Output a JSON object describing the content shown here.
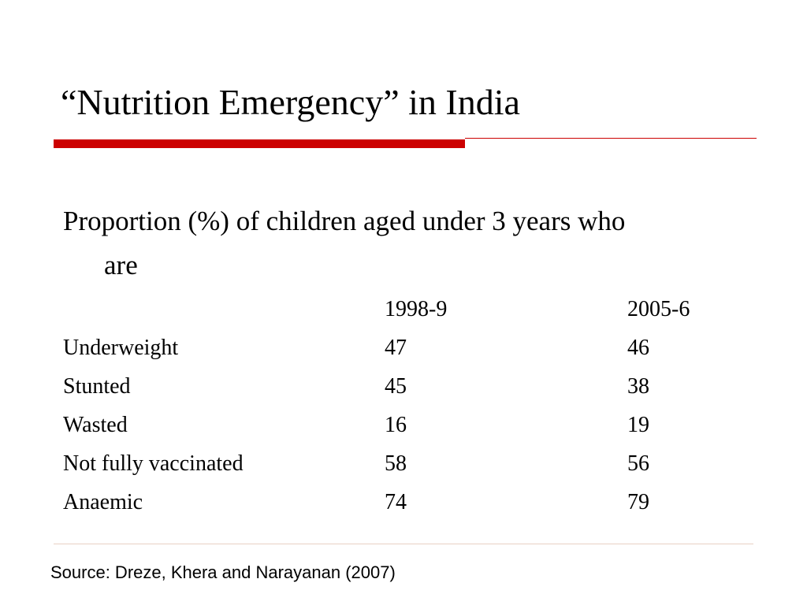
{
  "slide": {
    "title": "“Nutrition Emergency” in India",
    "intro_line1": "Proportion (%) of children aged under 3 years who",
    "intro_line2": "are"
  },
  "table": {
    "columns": [
      "",
      "1998-9",
      "2005-6"
    ],
    "rows": [
      {
        "label": "Underweight",
        "v1998": "47",
        "v2005": "46"
      },
      {
        "label": "Stunted",
        "v1998": "45",
        "v2005": "38"
      },
      {
        "label": "Wasted",
        "v1998": "16",
        "v2005": "19"
      },
      {
        "label": "Not fully vaccinated",
        "v1998": "58",
        "v2005": "56"
      },
      {
        "label": "Anaemic",
        "v1998": "74",
        "v2005": "79"
      }
    ]
  },
  "source": "Source: Dreze, Khera and Narayanan (2007)",
  "colors": {
    "accent_rule": "#cc0000",
    "thin_rule": "#cc0000",
    "footer_rule": "#e8d0c4"
  }
}
